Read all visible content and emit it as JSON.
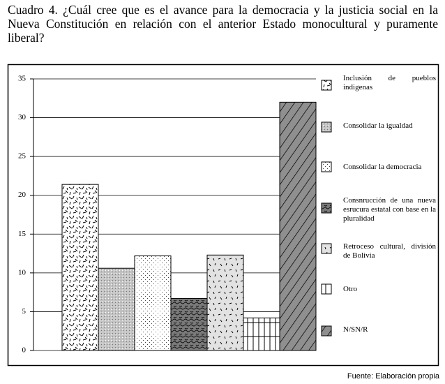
{
  "chart_data": {
    "type": "bar",
    "title": "Cuadro 4. ¿Cuál cree que es el avance para la democracia y la justicia social en la Nueva Constitución en relación con el anterior Estado monocultural y puramente liberal?",
    "categories": [
      "Inclusión de pueblos indigenas",
      "Consolidar la igualdad",
      "Consolidar la democracia",
      "Consnrucción de una nueva esrucura estatal con base en la pluralidad",
      "Retroceso cultural, división de Bolivia",
      "Otro",
      "N/SN/R"
    ],
    "values": [
      21.4,
      10.6,
      12.2,
      6.7,
      12.3,
      4.2,
      32.0
    ],
    "ylim": [
      0,
      35
    ],
    "yticks": [
      0,
      5,
      10,
      15,
      20,
      25,
      30,
      35
    ],
    "grid": true,
    "source": "Fuente: Elaboración propia"
  }
}
